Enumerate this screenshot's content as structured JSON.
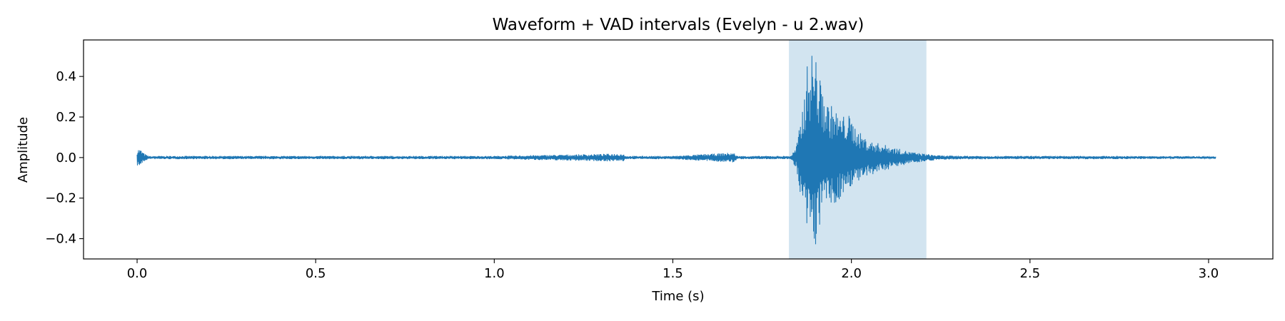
{
  "chart_data": {
    "type": "line",
    "title": "Waveform + VAD intervals (Evelyn - u 2.wav)",
    "xlabel": "Time (s)",
    "ylabel": "Amplitude",
    "xlim": [
      -0.15,
      3.18
    ],
    "ylim": [
      -0.5,
      0.58
    ],
    "x_ticks": [
      0.0,
      0.5,
      1.0,
      1.5,
      2.0,
      2.5,
      3.0
    ],
    "x_tick_labels": [
      "0.0",
      "0.5",
      "1.0",
      "1.5",
      "2.0",
      "2.5",
      "3.0"
    ],
    "y_ticks": [
      -0.4,
      -0.2,
      0.0,
      0.2,
      0.4
    ],
    "y_tick_labels": [
      "−0.4",
      "−0.2",
      "0.0",
      "0.2",
      "0.4"
    ],
    "grid": false,
    "series": [
      {
        "color": "#1f77b4",
        "duration": 3.02,
        "envelope": {
          "x": [
            0.0,
            0.005,
            0.01,
            0.02,
            0.03,
            0.04,
            0.05,
            0.1,
            0.3,
            0.6,
            1.0,
            1.36,
            1.37,
            1.5,
            1.67,
            1.68,
            1.75,
            1.83,
            1.845,
            1.86,
            1.875,
            1.89,
            1.9,
            1.91,
            1.93,
            1.95,
            1.97,
            1.99,
            2.02,
            2.05,
            2.08,
            2.12,
            2.16,
            2.2,
            2.25,
            2.4,
            2.7,
            3.02
          ],
          "upper": [
            0.04,
            0.045,
            0.04,
            0.02,
            0.01,
            0.006,
            0.008,
            0.008,
            0.008,
            0.008,
            0.008,
            0.02,
            0.008,
            0.008,
            0.025,
            0.008,
            0.008,
            0.008,
            0.05,
            0.2,
            0.45,
            0.53,
            0.52,
            0.4,
            0.28,
            0.25,
            0.2,
            0.22,
            0.13,
            0.08,
            0.07,
            0.05,
            0.03,
            0.02,
            0.01,
            0.008,
            0.008,
            0.006
          ],
          "lower": [
            -0.04,
            -0.045,
            -0.04,
            -0.02,
            -0.01,
            -0.006,
            -0.008,
            -0.008,
            -0.008,
            -0.008,
            -0.008,
            -0.02,
            -0.008,
            -0.008,
            -0.025,
            -0.008,
            -0.008,
            -0.008,
            -0.05,
            -0.25,
            -0.37,
            -0.42,
            -0.44,
            -0.35,
            -0.22,
            -0.26,
            -0.2,
            -0.15,
            -0.12,
            -0.1,
            -0.07,
            -0.05,
            -0.03,
            -0.02,
            -0.01,
            -0.008,
            -0.008,
            -0.006
          ]
        }
      }
    ],
    "vad_intervals": [
      {
        "start": 1.825,
        "end": 2.21,
        "color": "#1f77b4",
        "alpha": 0.2
      }
    ]
  }
}
